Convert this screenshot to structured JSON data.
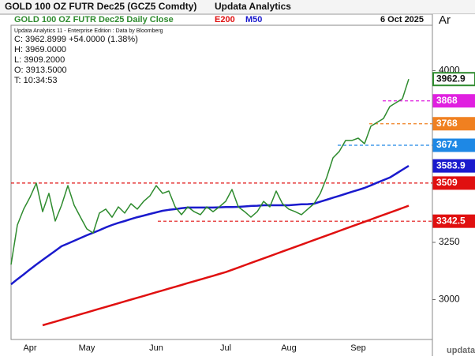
{
  "header": {
    "title": "GOLD 100 OZ FUTR  Dec25 (GCZ5 Comdty)",
    "app": "Updata Analytics",
    "tab": "Ar"
  },
  "date": "6 Oct 2025",
  "info": [
    "Updata Analytics 11 - Enterprise Edition : Data by Bloomberg",
    "C: 3962.8999  +54.0000 (1.38%)",
    "H: 3969.0000",
    "L: 3909.2000",
    "O: 3913.5000",
    "T: 10:34:53"
  ],
  "logo": "updata",
  "chart_data": {
    "type": "line",
    "categories": [
      null,
      null,
      null,
      "Apr",
      null,
      null,
      null,
      null,
      null,
      null,
      null,
      null,
      "May",
      null,
      null,
      null,
      null,
      null,
      null,
      null,
      null,
      null,
      null,
      "Jun",
      null,
      null,
      null,
      null,
      null,
      null,
      null,
      null,
      null,
      null,
      "Jul",
      null,
      null,
      null,
      null,
      null,
      null,
      null,
      null,
      null,
      "Aug",
      null,
      null,
      null,
      null,
      null,
      null,
      null,
      null,
      null,
      null,
      "Sep",
      null,
      null,
      null,
      null,
      null,
      null,
      null,
      null
    ],
    "series": [
      {
        "name": "GOLD 100 OZ FUTR  Dec25 Daily Close",
        "color": "#2e8b2e",
        "values": [
          3153,
          3326,
          3395,
          3447,
          3509,
          3384,
          3464,
          3343,
          3412,
          3498,
          3412,
          3360,
          3309,
          3291,
          3378,
          3395,
          3360,
          3405,
          3378,
          3419,
          3395,
          3429,
          3453,
          3498,
          3464,
          3474,
          3405,
          3371,
          3405,
          3384,
          3371,
          3405,
          3384,
          3405,
          3429,
          3481,
          3405,
          3384,
          3360,
          3384,
          3429,
          3405,
          3474,
          3419,
          3395,
          3384,
          3371,
          3395,
          3419,
          3464,
          3533,
          3619,
          3647,
          3695,
          3695,
          3705,
          3681,
          3757,
          3774,
          3791,
          3843,
          3860,
          3877,
          3962.9
        ]
      },
      {
        "name": "E200",
        "color": "#e01010",
        "values": [
          null,
          null,
          null,
          null,
          null,
          2888,
          2896,
          2904,
          2912,
          2920,
          2928,
          2936,
          2944,
          2952,
          2960,
          2968,
          2976,
          2984,
          2992,
          3000,
          3008,
          3016,
          3024,
          3032,
          3040,
          3048,
          3056,
          3064,
          3072,
          3080,
          3088,
          3096,
          3104,
          3112,
          3120,
          3130,
          3140,
          3150,
          3160,
          3170,
          3180,
          3190,
          3200,
          3210,
          3220,
          3230,
          3240,
          3250,
          3260,
          3270,
          3280,
          3290,
          3300,
          3310,
          3320,
          3330,
          3340,
          3350,
          3360,
          3370,
          3380,
          3390,
          3400,
          3410
        ]
      },
      {
        "name": "M50",
        "color": "#1a1acd",
        "values": [
          3067,
          3089,
          3110,
          3132,
          3153,
          3173,
          3193,
          3213,
          3233,
          3245,
          3257,
          3269,
          3281,
          3292,
          3303,
          3315,
          3326,
          3335,
          3343,
          3352,
          3360,
          3367,
          3374,
          3381,
          3388,
          3392,
          3395,
          3399,
          3402,
          3402,
          3402,
          3402,
          3402,
          3403,
          3404,
          3404,
          3405,
          3407,
          3409,
          3410,
          3412,
          3412,
          3412,
          3412,
          3412,
          3414,
          3416,
          3417,
          3419,
          3428,
          3436,
          3445,
          3453,
          3462,
          3471,
          3479,
          3488,
          3499,
          3511,
          3522,
          3533,
          3550,
          3567,
          3583.9
        ]
      }
    ],
    "levels": [
      {
        "value": 3868,
        "color": "#e020e0"
      },
      {
        "value": 3768,
        "color": "#f08020"
      },
      {
        "value": 3674,
        "color": "#1e88e5"
      },
      {
        "value": 3509,
        "color": "#e01010"
      },
      {
        "value": 3342.5,
        "color": "#e01010"
      }
    ],
    "ylim": [
      2826,
      4198
    ],
    "yticks": [
      3000,
      3250,
      4000
    ],
    "grid": false
  }
}
